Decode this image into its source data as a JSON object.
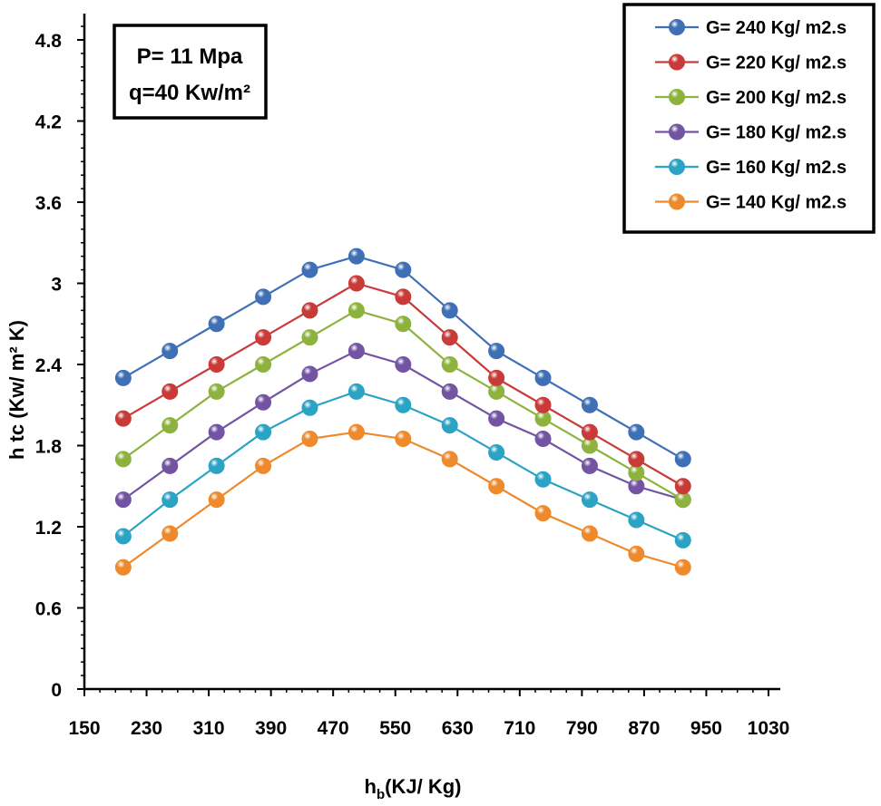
{
  "chart_data": {
    "type": "line",
    "title": "",
    "xlabel_main": "h",
    "xlabel_sub": "b",
    "xlabel_rest": "(KJ/ Kg)",
    "ylabel": "h tc (Kw/ m² K)",
    "xlim": [
      150,
      1030
    ],
    "ylim": [
      0,
      5.0
    ],
    "xticks": [
      150,
      230,
      310,
      390,
      470,
      550,
      630,
      710,
      790,
      870,
      950,
      1030
    ],
    "yticks": [
      0,
      0.6,
      1.2,
      1.8,
      2.4,
      3,
      3.6,
      4.2,
      4.8
    ],
    "ytick_labels": [
      "0",
      "0.6",
      "1.2",
      "1.8",
      "2.4",
      "3",
      "3.6",
      "4.2",
      "4.8"
    ],
    "grid": false,
    "legend_position": "top-right",
    "annotations": [
      "P= 11 Mpa",
      "q=40 Kw/m²"
    ],
    "x": [
      200,
      260,
      320,
      380,
      440,
      500,
      560,
      620,
      680,
      740,
      800,
      860,
      920
    ],
    "series": [
      {
        "name": "G= 240 Kg/ m2.s",
        "color": "#3f6fb5",
        "values": [
          2.3,
          2.5,
          2.7,
          2.9,
          3.1,
          3.2,
          3.1,
          2.8,
          2.5,
          2.3,
          2.1,
          1.9,
          1.7
        ]
      },
      {
        "name": "G= 220 Kg/ m2.s",
        "color": "#c83b38",
        "values": [
          2.0,
          2.2,
          2.4,
          2.6,
          2.8,
          3.0,
          2.9,
          2.6,
          2.3,
          2.1,
          1.9,
          1.7,
          1.5
        ]
      },
      {
        "name": "G= 200 Kg/ m2.s",
        "color": "#8db33e",
        "values": [
          1.7,
          1.95,
          2.2,
          2.4,
          2.6,
          2.8,
          2.7,
          2.4,
          2.2,
          2.0,
          1.8,
          1.6,
          1.4
        ]
      },
      {
        "name": "G= 180 Kg/ m2.s",
        "color": "#7354a3",
        "values": [
          1.4,
          1.65,
          1.9,
          2.12,
          2.33,
          2.5,
          2.4,
          2.2,
          2.0,
          1.85,
          1.65,
          1.5,
          1.4
        ]
      },
      {
        "name": "G= 160 Kg/ m2.s",
        "color": "#2ba3c4",
        "values": [
          1.13,
          1.4,
          1.65,
          1.9,
          2.08,
          2.2,
          2.1,
          1.95,
          1.75,
          1.55,
          1.4,
          1.25,
          1.1
        ]
      },
      {
        "name": "G= 140 Kg/ m2.s",
        "color": "#ee8a2c",
        "values": [
          0.9,
          1.15,
          1.4,
          1.65,
          1.85,
          1.9,
          1.85,
          1.7,
          1.5,
          1.3,
          1.15,
          1.0,
          0.9
        ]
      }
    ]
  }
}
